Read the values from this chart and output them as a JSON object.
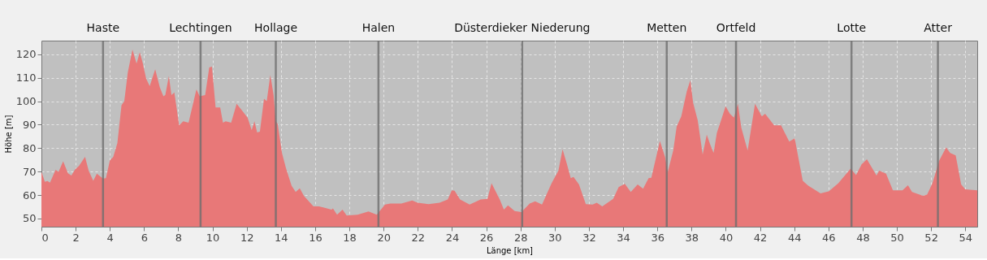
{
  "chart_data": {
    "type": "area",
    "xlabel": "Länge [km]",
    "ylabel": "Höhe [m]",
    "xlim": [
      0,
      54.7
    ],
    "ylim": [
      46.5,
      125.8
    ],
    "xticks": [
      0,
      2,
      4,
      6,
      8,
      10,
      12,
      14,
      16,
      18,
      20,
      22,
      24,
      26,
      28,
      30,
      32,
      34,
      36,
      38,
      40,
      42,
      44,
      46,
      48,
      50,
      52,
      54
    ],
    "yticks": [
      50,
      60,
      70,
      80,
      90,
      100,
      110,
      120
    ],
    "grid": true,
    "ref_lines": [
      {
        "axis": "x",
        "value": 3.6,
        "label": "Haste",
        "color": "#6e6e6e"
      },
      {
        "axis": "x",
        "value": 9.3,
        "label": "Lechtingen",
        "color": "#6e6e6e"
      },
      {
        "axis": "x",
        "value": 13.7,
        "label": "Hollage",
        "color": "#6e6e6e"
      },
      {
        "axis": "x",
        "value": 19.7,
        "label": "Halen",
        "color": "#6e6e6e"
      },
      {
        "axis": "x",
        "value": 28.1,
        "label": "Düsterdieker Niederung",
        "color": "#6e6e6e"
      },
      {
        "axis": "x",
        "value": 36.55,
        "label": "Metten",
        "color": "#6e6e6e"
      },
      {
        "axis": "x",
        "value": 40.6,
        "label": "Ortfeld",
        "color": "#6e6e6e"
      },
      {
        "axis": "x",
        "value": 47.35,
        "label": "Lotte",
        "color": "#6e6e6e"
      },
      {
        "axis": "x",
        "value": 52.4,
        "label": "Atter",
        "color": "#6e6e6e"
      }
    ],
    "series": [
      {
        "color": "#e87878",
        "x": [
          0,
          0.2,
          0.35,
          0.5,
          0.83,
          1.0,
          1.27,
          1.55,
          1.75,
          1.96,
          2.2,
          2.55,
          2.76,
          3.03,
          3.24,
          3.6,
          3.77,
          4.0,
          4.2,
          4.44,
          4.68,
          4.84,
          5.05,
          5.32,
          5.56,
          5.75,
          5.93,
          6.12,
          6.33,
          6.65,
          6.92,
          7.13,
          7.24,
          7.45,
          7.6,
          7.77,
          8.05,
          8.29,
          8.6,
          9.06,
          9.25,
          9.57,
          9.81,
          9.97,
          10.18,
          10.45,
          10.61,
          10.77,
          11.09,
          11.41,
          11.65,
          12.05,
          12.29,
          12.45,
          12.61,
          12.77,
          13.01,
          13.17,
          13.38,
          13.57,
          13.7,
          13.81,
          14.06,
          14.29,
          14.62,
          14.86,
          15.1,
          15.34,
          15.9,
          16.22,
          16.96,
          17.04,
          17.28,
          17.6,
          17.84,
          18.48,
          19.12,
          19.6,
          20.08,
          20.4,
          21.04,
          21.67,
          21.99,
          22.63,
          23.27,
          23.75,
          23.99,
          24.15,
          24.47,
          25.03,
          25.67,
          26.07,
          26.31,
          26.79,
          27.03,
          27.27,
          27.66,
          28.06,
          28.54,
          28.86,
          29.26,
          29.82,
          30.22,
          30.46,
          30.7,
          30.94,
          31.1,
          31.42,
          31.82,
          32.22,
          32.46,
          32.78,
          33.42,
          33.74,
          34.1,
          34.45,
          34.85,
          35.17,
          35.49,
          35.65,
          36.15,
          36.45,
          36.61,
          36.93,
          37.13,
          37.4,
          37.72,
          37.93,
          38.09,
          38.36,
          38.65,
          38.89,
          39.08,
          39.29,
          39.48,
          39.75,
          39.99,
          40.24,
          40.48,
          40.71,
          40.91,
          41.28,
          41.71,
          42.11,
          42.3,
          42.83,
          43.23,
          43.71,
          44.03,
          44.5,
          44.82,
          45.54,
          46.02,
          46.58,
          47.3,
          47.62,
          47.94,
          48.25,
          48.81,
          48.97,
          49.37,
          49.77,
          50.33,
          50.65,
          50.89,
          51.53,
          51.77,
          52.08,
          52.48,
          52.88,
          53.12,
          53.44,
          53.76,
          54.0,
          54.7
        ],
        "values": [
          69.9,
          65.6,
          66,
          65.3,
          70.7,
          69.9,
          74.4,
          69.3,
          68.3,
          70.8,
          72.5,
          76.3,
          70.4,
          66.1,
          69.1,
          67,
          67.2,
          74.7,
          76.3,
          82.2,
          98.3,
          99.9,
          112.3,
          122,
          116,
          120.9,
          116,
          109.6,
          106.4,
          113.6,
          105.9,
          102.1,
          102.6,
          110.7,
          102.6,
          103.7,
          89.7,
          91.4,
          90.8,
          105,
          102.1,
          102.6,
          114.4,
          114.7,
          97.3,
          97.3,
          90.8,
          91.4,
          90.8,
          98.9,
          96.7,
          93,
          87.6,
          91.4,
          86.7,
          87,
          101,
          100,
          111.2,
          102.6,
          91.4,
          90.3,
          77.9,
          71.5,
          64,
          61.3,
          62.9,
          59.7,
          55.2,
          55.2,
          53.8,
          54.3,
          51.6,
          53.8,
          51.3,
          51.6,
          53,
          51.6,
          55.9,
          56.4,
          56.4,
          57.7,
          56.7,
          56.1,
          56.7,
          58.1,
          62,
          61.8,
          58.1,
          55.9,
          58.1,
          58.4,
          65,
          58.1,
          53.8,
          55.6,
          53.2,
          52.7,
          56.4,
          57.3,
          55.9,
          65,
          70.4,
          79.5,
          73.6,
          67.2,
          67.7,
          64.5,
          56.1,
          55.9,
          56.7,
          55.2,
          58.4,
          63.4,
          64.8,
          61.3,
          64.5,
          62.7,
          67.2,
          67.4,
          83,
          76.3,
          69.9,
          79,
          89.2,
          93.5,
          104.2,
          108.9,
          99.4,
          91.9,
          77.2,
          85.7,
          81.7,
          77.9,
          86.5,
          92.4,
          97.8,
          94.6,
          93,
          98.9,
          88.7,
          79,
          98.9,
          93.5,
          94.6,
          89.7,
          89.7,
          82.8,
          84.2,
          66.1,
          64,
          60.7,
          61.6,
          65,
          71.3,
          68.5,
          73.1,
          75.2,
          68.3,
          70.4,
          69.1,
          62,
          62,
          64.2,
          61.3,
          59.7,
          60.2,
          65,
          74.7,
          80.3,
          77.9,
          76.9,
          64.5,
          62.4,
          62
        ]
      }
    ]
  }
}
